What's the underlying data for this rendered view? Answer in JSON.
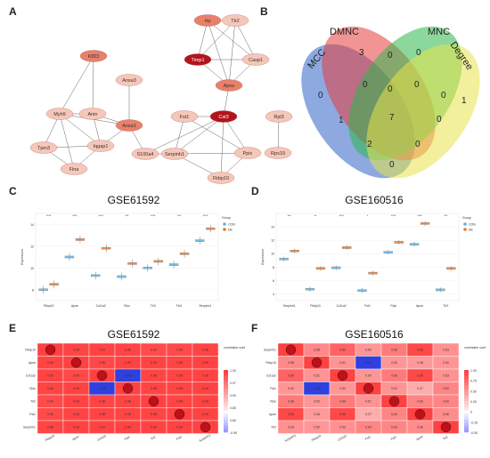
{
  "panels": {
    "a": "A",
    "b": "B",
    "c": "C",
    "d": "D",
    "e": "E",
    "f": "F"
  },
  "network": {
    "nodes": [
      "Hp",
      "Tlr2",
      "Timp1",
      "Casp1",
      "Apoe",
      "Klf23",
      "Anxa3",
      "Myh9",
      "Anin",
      "Anxa1",
      "Tpm3",
      "Iqgap1",
      "Flna",
      "S100a4",
      "Fst1",
      "Cst3",
      "Rpl3",
      "Serpinh1",
      "Ppic",
      "Rps19",
      "Fkbp10"
    ]
  },
  "venn": {
    "labels": [
      "MCC",
      "DMNC",
      "MNC",
      "Degree"
    ],
    "numbers": [
      "3",
      "0",
      "0",
      "0",
      "0",
      "0",
      "0",
      "0",
      "1",
      "1",
      "7",
      "0",
      "2",
      "0",
      "0"
    ]
  },
  "chart_data": [
    {
      "type": "box",
      "title": "GSE61592",
      "ylabel": "Expression",
      "categories": [
        "Fkbp10",
        "Apoe",
        "Col1a2",
        "Ppic",
        "Tlr2",
        "Fst1",
        "Serpinh1"
      ],
      "significance": [
        "****",
        "****",
        "****",
        "***",
        "****",
        "***",
        "****"
      ],
      "legend_title": "Group",
      "legend_items": [
        "CON",
        "DE"
      ],
      "yticks": [
        "8",
        "10",
        "12",
        "14"
      ],
      "ylim": [
        7,
        15
      ],
      "series": [
        {
          "name": "CON",
          "values": [
            8.0,
            11.0,
            9.3,
            9.2,
            10.0,
            10.3,
            12.5
          ]
        },
        {
          "name": "DE",
          "values": [
            8.5,
            12.6,
            11.8,
            10.4,
            10.6,
            11.3,
            13.6
          ]
        }
      ]
    },
    {
      "type": "box",
      "title": "GSE160516",
      "ylabel": "Expression",
      "categories": [
        "Serpinh1",
        "Fkbp10",
        "Col1a2",
        "Fst1",
        "Ppic",
        "Apoe",
        "Tlr2"
      ],
      "significance": [
        "***",
        "**",
        "****",
        "*",
        "****",
        "****",
        "***"
      ],
      "legend_title": "Group",
      "legend_items": [
        "CON",
        "DE"
      ],
      "yticks": [
        "4",
        "6",
        "8",
        "10",
        "12",
        "14"
      ],
      "ylim": [
        3,
        16
      ],
      "series": [
        {
          "name": "CON",
          "values": [
            9.2,
            4.7,
            7.9,
            4.5,
            10.2,
            11.4,
            4.6
          ]
        },
        {
          "name": "DE",
          "values": [
            10.4,
            7.8,
            10.9,
            7.1,
            11.7,
            14.5,
            7.8
          ]
        }
      ]
    },
    {
      "type": "heatmap",
      "title": "GSE61592",
      "rows": [
        "Fkbp10",
        "Apoe",
        "Col1a2",
        "Ppic",
        "Tlr2",
        "Fst1",
        "Serpinh1"
      ],
      "cols": [
        "Fkbp10",
        "Apoe",
        "Col1a2",
        "Ppic",
        "Tlr2",
        "Fst1",
        "Serpinh1"
      ],
      "matrix": [
        [
          1.0,
          0.98,
          0.99,
          0.98,
          0.94,
          0.95,
          0.98
        ],
        [
          0.98,
          1.0,
          0.96,
          0.99,
          0.99,
          0.98,
          0.99
        ],
        [
          0.99,
          0.96,
          1.0,
          -0.95,
          0.98,
          0.98,
          0.99
        ],
        [
          0.98,
          0.99,
          -0.95,
          1.0,
          0.98,
          0.98,
          0.99
        ],
        [
          0.94,
          0.99,
          0.98,
          0.98,
          1.0,
          0.98,
          0.99
        ],
        [
          0.95,
          0.98,
          0.98,
          0.98,
          0.98,
          1.0,
          0.99
        ],
        [
          0.98,
          0.99,
          0.99,
          0.99,
          0.99,
          0.99,
          1.0
        ]
      ],
      "legend_title": "correlation coefficient",
      "legend_ticks": [
        "1.00",
        "0.97",
        "0.90",
        "0.85",
        "0.80",
        "-0.95"
      ]
    },
    {
      "type": "heatmap",
      "title": "GSE160516",
      "rows": [
        "Serpinh1",
        "Fkbp10",
        "Col1a2",
        "Fst1",
        "Ppic",
        "Apoe",
        "Tlr2"
      ],
      "cols": [
        "Serpinh1",
        "Fkbp10",
        "Col1a2",
        "Fst1",
        "Ppic",
        "Apoe",
        "Tlr2"
      ],
      "matrix": [
        [
          1.0,
          0.58,
          0.8,
          0.5,
          0.66,
          0.96,
          0.53
        ],
        [
          0.58,
          1.0,
          0.51,
          -0.6,
          0.5,
          0.48,
          0.5
        ],
        [
          0.8,
          0.51,
          1.0,
          0.5,
          0.66,
          0.96,
          0.53
        ],
        [
          0.5,
          -0.6,
          0.5,
          1.0,
          0.51,
          0.37,
          0.6
        ],
        [
          0.66,
          0.5,
          0.66,
          0.51,
          1.0,
          0.6,
          0.6
        ],
        [
          0.96,
          0.48,
          0.96,
          0.37,
          0.6,
          1.0,
          0.56
        ],
        [
          0.53,
          0.5,
          0.53,
          0.6,
          0.6,
          0.56,
          1.0
        ]
      ],
      "legend_title": "correlation coefficient",
      "legend_ticks": [
        "1.00",
        "0.75",
        "0.50",
        "0.25",
        "0",
        "-0.25",
        "-0.50"
      ]
    }
  ]
}
